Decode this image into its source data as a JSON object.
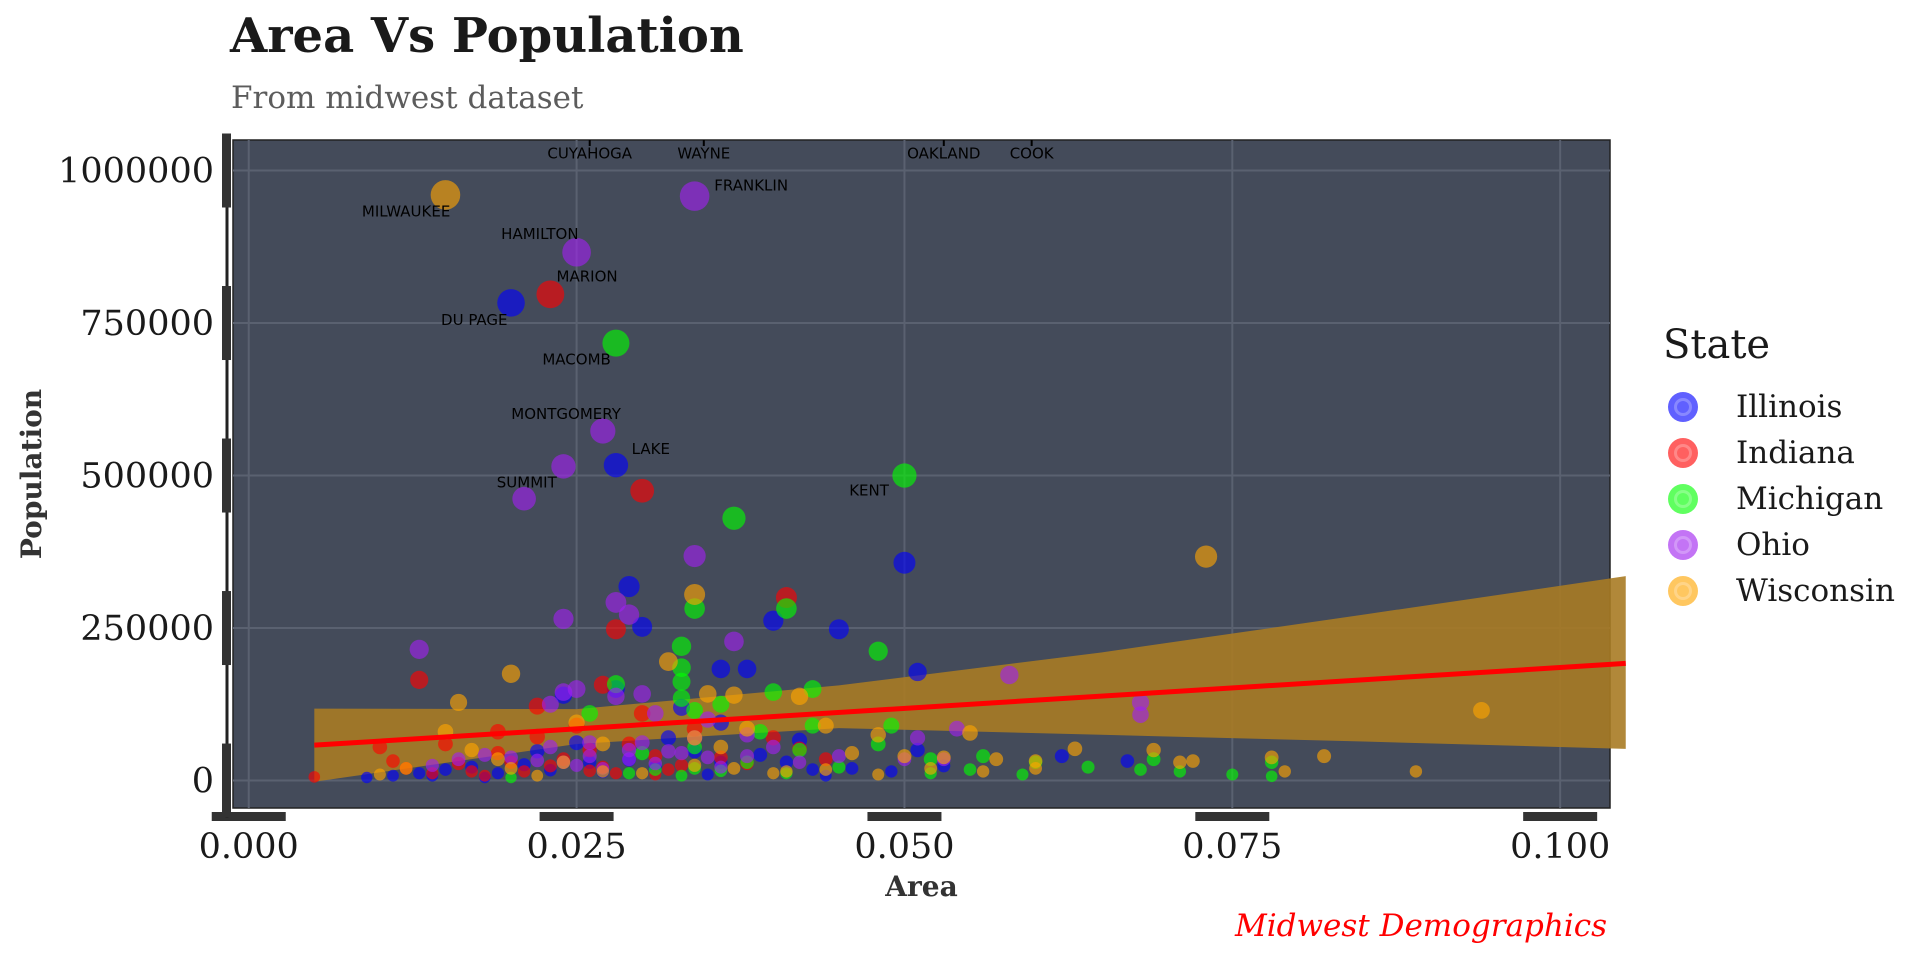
{
  "title": "Area Vs Population",
  "subtitle": "From midwest dataset",
  "caption": "Midwest Demographics",
  "chart_data": {
    "type": "scatter",
    "xlabel": "Area",
    "ylabel": "Population",
    "xlim": [
      -0.0012,
      0.1038
    ],
    "ylim": [
      -45000,
      1050000
    ],
    "x_ticks": [
      {
        "value": 0.0,
        "label": "0.000"
      },
      {
        "value": 0.025,
        "label": "0.025"
      },
      {
        "value": 0.05,
        "label": "0.050"
      },
      {
        "value": 0.075,
        "label": "0.075"
      },
      {
        "value": 0.1,
        "label": "0.100"
      }
    ],
    "y_ticks": [
      {
        "value": 0,
        "label": "0"
      },
      {
        "value": 250000,
        "label": "250000"
      },
      {
        "value": 500000,
        "label": "500000"
      },
      {
        "value": 750000,
        "label": "750000"
      },
      {
        "value": 1000000,
        "label": "1000000"
      }
    ],
    "grid": true,
    "legend": {
      "title": "State",
      "position": "right"
    },
    "panel_color": "#444b5a",
    "series": [
      {
        "name": "Illinois",
        "color": "#0000ff",
        "points": [
          [
            0.02,
            783000
          ],
          [
            0.028,
            517000
          ],
          [
            0.05,
            357000
          ],
          [
            0.029,
            318000
          ],
          [
            0.03,
            252000
          ],
          [
            0.04,
            262000
          ],
          [
            0.045,
            248000
          ],
          [
            0.036,
            183000
          ],
          [
            0.038,
            183000
          ],
          [
            0.051,
            178000
          ],
          [
            0.028,
            150000
          ],
          [
            0.024,
            140000
          ],
          [
            0.033,
            120000
          ],
          [
            0.036,
            95000
          ],
          [
            0.042,
            66000
          ],
          [
            0.009,
            5000
          ],
          [
            0.011,
            8000
          ],
          [
            0.013,
            12000
          ],
          [
            0.015,
            18000
          ],
          [
            0.017,
            22000
          ],
          [
            0.019,
            12000
          ],
          [
            0.021,
            26000
          ],
          [
            0.023,
            17000
          ],
          [
            0.026,
            30000
          ],
          [
            0.029,
            34000
          ],
          [
            0.031,
            22000
          ],
          [
            0.034,
            48000
          ],
          [
            0.036,
            30000
          ],
          [
            0.039,
            42000
          ],
          [
            0.041,
            30000
          ],
          [
            0.043,
            18000
          ],
          [
            0.046,
            20000
          ],
          [
            0.049,
            15000
          ],
          [
            0.051,
            50000
          ],
          [
            0.053,
            24000
          ],
          [
            0.062,
            40000
          ],
          [
            0.067,
            32000
          ],
          [
            0.025,
            62000
          ],
          [
            0.032,
            70000
          ],
          [
            0.014,
            8000
          ],
          [
            0.018,
            5000
          ],
          [
            0.027,
            14000
          ],
          [
            0.035,
            10000
          ],
          [
            0.044,
            8000
          ],
          [
            0.022,
            48000
          ]
        ]
      },
      {
        "name": "Indiana",
        "color": "#ff0000",
        "points": [
          [
            0.023,
            797000
          ],
          [
            0.03,
            475000
          ],
          [
            0.041,
            300000
          ],
          [
            0.028,
            248000
          ],
          [
            0.013,
            165000
          ],
          [
            0.027,
            157000
          ],
          [
            0.022,
            122000
          ],
          [
            0.005,
            6000
          ],
          [
            0.01,
            55000
          ],
          [
            0.012,
            20000
          ],
          [
            0.014,
            12000
          ],
          [
            0.016,
            28000
          ],
          [
            0.018,
            8000
          ],
          [
            0.019,
            45000
          ],
          [
            0.021,
            15000
          ],
          [
            0.022,
            72000
          ],
          [
            0.024,
            35000
          ],
          [
            0.026,
            50000
          ],
          [
            0.027,
            22000
          ],
          [
            0.029,
            60000
          ],
          [
            0.031,
            40000
          ],
          [
            0.032,
            18000
          ],
          [
            0.034,
            85000
          ],
          [
            0.036,
            38000
          ],
          [
            0.038,
            28000
          ],
          [
            0.04,
            70000
          ],
          [
            0.042,
            52000
          ],
          [
            0.044,
            35000
          ],
          [
            0.025,
            90000
          ],
          [
            0.03,
            110000
          ],
          [
            0.017,
            15000
          ],
          [
            0.02,
            30000
          ],
          [
            0.023,
            24000
          ],
          [
            0.028,
            12000
          ],
          [
            0.033,
            25000
          ],
          [
            0.011,
            32000
          ],
          [
            0.015,
            60000
          ],
          [
            0.019,
            80000
          ],
          [
            0.026,
            16000
          ],
          [
            0.031,
            10000
          ]
        ]
      },
      {
        "name": "Michigan",
        "color": "#00ff00",
        "points": [
          [
            0.028,
            717000
          ],
          [
            0.05,
            500000
          ],
          [
            0.037,
            430000
          ],
          [
            0.034,
            282000
          ],
          [
            0.041,
            282000
          ],
          [
            0.033,
            220000
          ],
          [
            0.048,
            212000
          ],
          [
            0.033,
            185000
          ],
          [
            0.033,
            162000
          ],
          [
            0.028,
            158000
          ],
          [
            0.043,
            150000
          ],
          [
            0.04,
            145000
          ],
          [
            0.033,
            135000
          ],
          [
            0.036,
            125000
          ],
          [
            0.034,
            115000
          ],
          [
            0.026,
            110000
          ],
          [
            0.049,
            90000
          ],
          [
            0.043,
            90000
          ],
          [
            0.039,
            80000
          ],
          [
            0.048,
            60000
          ],
          [
            0.034,
            55000
          ],
          [
            0.03,
            45000
          ],
          [
            0.042,
            50000
          ],
          [
            0.056,
            40000
          ],
          [
            0.052,
            35000
          ],
          [
            0.06,
            30000
          ],
          [
            0.064,
            22000
          ],
          [
            0.068,
            18000
          ],
          [
            0.071,
            15000
          ],
          [
            0.075,
            10000
          ],
          [
            0.078,
            7000
          ],
          [
            0.069,
            35000
          ],
          [
            0.078,
            30000
          ],
          [
            0.034,
            20000
          ],
          [
            0.031,
            18000
          ],
          [
            0.029,
            12000
          ],
          [
            0.036,
            16000
          ],
          [
            0.041,
            12000
          ],
          [
            0.045,
            22000
          ],
          [
            0.033,
            8000
          ],
          [
            0.052,
            12000
          ],
          [
            0.055,
            18000
          ],
          [
            0.059,
            10000
          ],
          [
            0.02,
            5000
          ],
          [
            0.038,
            30000
          ]
        ]
      },
      {
        "name": "Ohio",
        "color": "#a020f0",
        "points": [
          [
            0.034,
            958000
          ],
          [
            0.025,
            866000
          ],
          [
            0.027,
            573000
          ],
          [
            0.024,
            515000
          ],
          [
            0.021,
            462000
          ],
          [
            0.034,
            368000
          ],
          [
            0.028,
            292000
          ],
          [
            0.029,
            272000
          ],
          [
            0.024,
            265000
          ],
          [
            0.037,
            228000
          ],
          [
            0.013,
            215000
          ],
          [
            0.058,
            173000
          ],
          [
            0.025,
            150000
          ],
          [
            0.024,
            145000
          ],
          [
            0.028,
            138000
          ],
          [
            0.03,
            142000
          ],
          [
            0.023,
            125000
          ],
          [
            0.031,
            110000
          ],
          [
            0.068,
            128000
          ],
          [
            0.068,
            108000
          ],
          [
            0.035,
            100000
          ],
          [
            0.054,
            85000
          ],
          [
            0.051,
            70000
          ],
          [
            0.038,
            75000
          ],
          [
            0.026,
            62000
          ],
          [
            0.029,
            50000
          ],
          [
            0.032,
            48000
          ],
          [
            0.018,
            42000
          ],
          [
            0.02,
            38000
          ],
          [
            0.022,
            33000
          ],
          [
            0.024,
            30000
          ],
          [
            0.025,
            25000
          ],
          [
            0.026,
            40000
          ],
          [
            0.027,
            20000
          ],
          [
            0.029,
            35000
          ],
          [
            0.031,
            28000
          ],
          [
            0.033,
            45000
          ],
          [
            0.035,
            38000
          ],
          [
            0.036,
            22000
          ],
          [
            0.016,
            35000
          ],
          [
            0.014,
            25000
          ],
          [
            0.038,
            40000
          ],
          [
            0.04,
            55000
          ],
          [
            0.042,
            30000
          ],
          [
            0.045,
            40000
          ],
          [
            0.05,
            35000
          ],
          [
            0.053,
            35000
          ],
          [
            0.023,
            55000
          ],
          [
            0.03,
            62000
          ],
          [
            0.034,
            70000
          ]
        ]
      },
      {
        "name": "Wisconsin",
        "color": "#ffa500",
        "points": [
          [
            0.015,
            960000
          ],
          [
            0.073,
            367000
          ],
          [
            0.034,
            305000
          ],
          [
            0.032,
            195000
          ],
          [
            0.02,
            175000
          ],
          [
            0.035,
            142000
          ],
          [
            0.037,
            140000
          ],
          [
            0.042,
            138000
          ],
          [
            0.016,
            128000
          ],
          [
            0.094,
            115000
          ],
          [
            0.038,
            85000
          ],
          [
            0.044,
            90000
          ],
          [
            0.048,
            75000
          ],
          [
            0.055,
            78000
          ],
          [
            0.034,
            70000
          ],
          [
            0.027,
            60000
          ],
          [
            0.036,
            55000
          ],
          [
            0.063,
            52000
          ],
          [
            0.069,
            50000
          ],
          [
            0.046,
            45000
          ],
          [
            0.05,
            40000
          ],
          [
            0.053,
            38000
          ],
          [
            0.057,
            35000
          ],
          [
            0.06,
            32000
          ],
          [
            0.071,
            30000
          ],
          [
            0.078,
            38000
          ],
          [
            0.082,
            40000
          ],
          [
            0.079,
            15000
          ],
          [
            0.089,
            15000
          ],
          [
            0.041,
            15000
          ],
          [
            0.048,
            10000
          ],
          [
            0.044,
            18000
          ],
          [
            0.04,
            12000
          ],
          [
            0.037,
            20000
          ],
          [
            0.034,
            25000
          ],
          [
            0.03,
            12000
          ],
          [
            0.027,
            15000
          ],
          [
            0.024,
            30000
          ],
          [
            0.022,
            8000
          ],
          [
            0.02,
            20000
          ],
          [
            0.019,
            35000
          ],
          [
            0.017,
            50000
          ],
          [
            0.015,
            80000
          ],
          [
            0.012,
            20000
          ],
          [
            0.01,
            10000
          ],
          [
            0.052,
            20000
          ],
          [
            0.056,
            15000
          ],
          [
            0.06,
            20000
          ],
          [
            0.072,
            32000
          ],
          [
            0.025,
            95000
          ]
        ]
      }
    ],
    "labels": [
      {
        "text": "CUYAHOGA",
        "x": 0.026,
        "y": 1020000,
        "anchor": "middle"
      },
      {
        "text": "WAYNE",
        "x": 0.0347,
        "y": 1020000,
        "anchor": "middle"
      },
      {
        "text": "OAKLAND",
        "x": 0.053,
        "y": 1020000,
        "anchor": "middle"
      },
      {
        "text": "COOK",
        "x": 0.0597,
        "y": 1020000,
        "anchor": "middle"
      },
      {
        "text": "FRANKLIN",
        "x": 0.0355,
        "y": 967000,
        "anchor": "start"
      },
      {
        "text": "MILWAUKEE",
        "x": 0.012,
        "y": 925000,
        "anchor": "middle"
      },
      {
        "text": "HAMILTON",
        "x": 0.0222,
        "y": 888000,
        "anchor": "middle"
      },
      {
        "text": "MARION",
        "x": 0.0258,
        "y": 818000,
        "anchor": "middle"
      },
      {
        "text": "DU PAGE",
        "x": 0.0172,
        "y": 747000,
        "anchor": "middle"
      },
      {
        "text": "MACOMB",
        "x": 0.025,
        "y": 682000,
        "anchor": "middle"
      },
      {
        "text": "MONTGOMERY",
        "x": 0.0242,
        "y": 593000,
        "anchor": "middle"
      },
      {
        "text": "LAKE",
        "x": 0.0292,
        "y": 535000,
        "anchor": "start"
      },
      {
        "text": "SUMMIT",
        "x": 0.0212,
        "y": 480000,
        "anchor": "middle"
      },
      {
        "text": "KENT",
        "x": 0.0473,
        "y": 467000,
        "anchor": "middle"
      }
    ],
    "label_stems_x": [
      0.026,
      0.0347,
      0.053,
      0.0597
    ],
    "smooth": {
      "color": "#ff0000",
      "band_color": "#a87b24",
      "line": [
        [
          0.005,
          58000
        ],
        [
          0.105,
          192000
        ]
      ],
      "band_upper": [
        [
          0.005,
          118000
        ],
        [
          0.025,
          117000
        ],
        [
          0.045,
          156000
        ],
        [
          0.065,
          210000
        ],
        [
          0.085,
          272000
        ],
        [
          0.105,
          335000
        ]
      ],
      "band_lower": [
        [
          0.005,
          -2000
        ],
        [
          0.025,
          60000
        ],
        [
          0.045,
          86000
        ],
        [
          0.065,
          75000
        ],
        [
          0.085,
          64000
        ],
        [
          0.105,
          52000
        ]
      ]
    }
  }
}
